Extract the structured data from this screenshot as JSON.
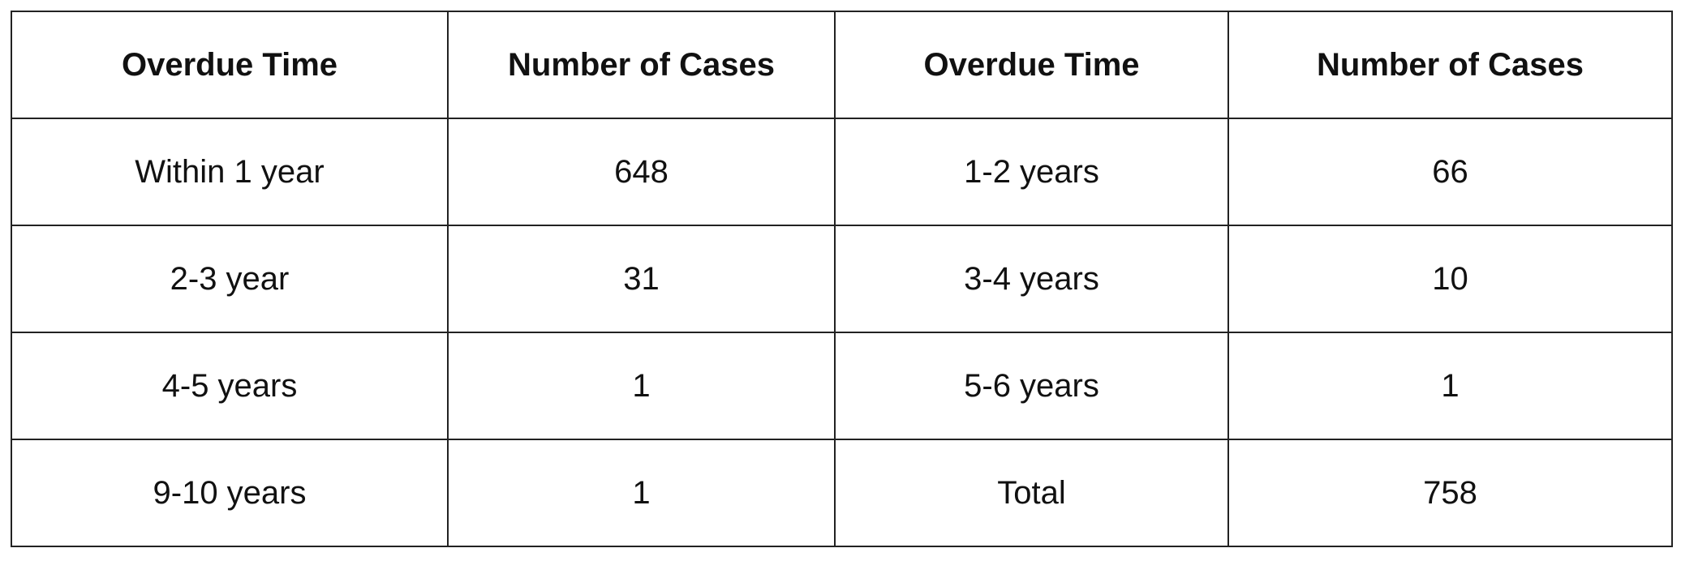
{
  "table": {
    "header": [
      "Overdue Time",
      "Number of Cases",
      "Overdue Time",
      "Number of Cases"
    ],
    "rows": [
      [
        "Within 1 year",
        648,
        "1-2 years",
        66
      ],
      [
        "2-3 year",
        31,
        "3-4 years",
        10
      ],
      [
        "4-5 years",
        1,
        "5-6 years",
        1
      ],
      [
        "9-10 years",
        1,
        "Total",
        758
      ]
    ]
  }
}
